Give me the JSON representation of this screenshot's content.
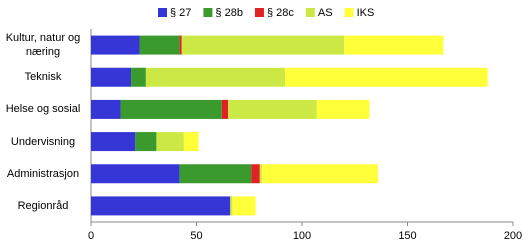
{
  "chart_data": {
    "type": "stacked-bar-horizontal",
    "categories": [
      "Kultur, natur og næring",
      "Teknisk",
      "Helse og sosial",
      "Undervisning",
      "Administrasjon",
      "Regionråd"
    ],
    "series": [
      {
        "name": "§ 27",
        "color": "#3636d6",
        "values": [
          23,
          19,
          14,
          21,
          42,
          66
        ]
      },
      {
        "name": "§ 28b",
        "color": "#3a9a2e",
        "values": [
          19,
          7,
          48,
          10,
          34,
          0
        ]
      },
      {
        "name": "§ 28c",
        "color": "#e02222",
        "values": [
          1,
          0,
          3,
          0,
          4,
          0
        ]
      },
      {
        "name": "AS",
        "color": "#cbe845",
        "values": [
          77,
          66,
          42,
          13,
          1,
          1
        ]
      },
      {
        "name": "IKS",
        "color": "#ffff3a",
        "values": [
          47,
          96,
          25,
          7,
          55,
          11
        ]
      }
    ],
    "xlim": [
      0,
      200
    ],
    "xticks": [
      0,
      50,
      100,
      150,
      200
    ],
    "legend": "top"
  }
}
